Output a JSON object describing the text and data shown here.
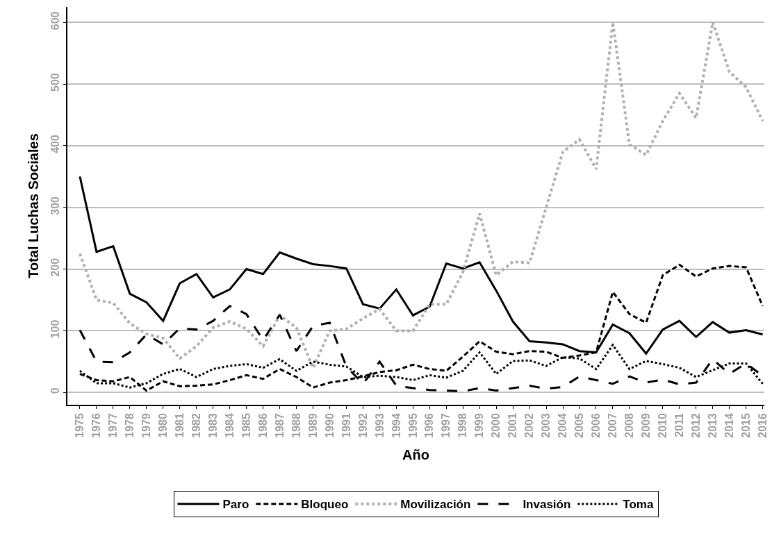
{
  "chart_data": {
    "type": "line",
    "xlabel": "Año",
    "ylabel": "Total Luchas Sociales",
    "categories": [
      "1975",
      "1976",
      "1977",
      "1978",
      "1979",
      "1980",
      "1981",
      "1982",
      "1983",
      "1984",
      "1985",
      "1986",
      "1987",
      "1988",
      "1989",
      "1990",
      "1991",
      "1992",
      "1993",
      "1994",
      "1995",
      "1996",
      "1997",
      "1998",
      "1999",
      "2000",
      "2001",
      "2002",
      "2003",
      "2004",
      "2005",
      "2006",
      "2007",
      "2008",
      "2009",
      "2010",
      "2011",
      "2012",
      "2013",
      "2014",
      "2015",
      "2016"
    ],
    "series": [
      {
        "name": "Paro",
        "color": "#000000",
        "line_style": "solid",
        "values": [
          350,
          228,
          237,
          160,
          146,
          116,
          177,
          192,
          154,
          167,
          200,
          192,
          227,
          217,
          208,
          205,
          201,
          143,
          136,
          167,
          125,
          139,
          209,
          201,
          211,
          165,
          115,
          83,
          81,
          78,
          67,
          65,
          110,
          96,
          63,
          102,
          116,
          90,
          114,
          97,
          101,
          94
        ]
      },
      {
        "name": "Bloqueo",
        "color": "#000000",
        "line_style": "dashed",
        "values": [
          30,
          20,
          18,
          25,
          3,
          18,
          10,
          11,
          13,
          20,
          28,
          22,
          38,
          25,
          8,
          16,
          20,
          26,
          33,
          36,
          45,
          38,
          35,
          58,
          83,
          66,
          62,
          67,
          66,
          56,
          60,
          65,
          163,
          127,
          113,
          190,
          207,
          188,
          201,
          205,
          203,
          140
        ]
      },
      {
        "name": "Movilización",
        "color": "#b0b0b0",
        "line_style": "dotted",
        "values": [
          225,
          150,
          145,
          112,
          95,
          88,
          55,
          75,
          105,
          115,
          103,
          75,
          125,
          105,
          40,
          100,
          103,
          120,
          135,
          100,
          100,
          143,
          143,
          195,
          290,
          190,
          212,
          210,
          300,
          390,
          410,
          362,
          600,
          402,
          385,
          440,
          485,
          445,
          600,
          520,
          495,
          440
        ]
      },
      {
        "name": "Invasión",
        "color": "#000000",
        "line_style": "longdash",
        "values": [
          101,
          50,
          49,
          65,
          94,
          78,
          104,
          102,
          116,
          140,
          127,
          85,
          126,
          67,
          108,
          113,
          42,
          14,
          50,
          11,
          7,
          4,
          3,
          2,
          7,
          3,
          7,
          11,
          6,
          9,
          26,
          20,
          14,
          26,
          16,
          21,
          13,
          16,
          54,
          30,
          47,
          27
        ]
      },
      {
        "name": "Toma",
        "color": "#000000",
        "line_style": "dotted",
        "values": [
          35,
          15,
          15,
          8,
          15,
          30,
          38,
          25,
          38,
          43,
          46,
          40,
          54,
          35,
          50,
          45,
          42,
          25,
          27,
          25,
          20,
          28,
          24,
          35,
          65,
          30,
          51,
          52,
          43,
          57,
          55,
          38,
          77,
          38,
          51,
          46,
          40,
          25,
          36,
          47,
          47,
          14
        ]
      }
    ],
    "ylim": [
      -20,
      625
    ],
    "yticks": [
      0,
      100,
      200,
      300,
      400,
      500,
      600
    ],
    "grid": "y",
    "legend": "bottom"
  }
}
